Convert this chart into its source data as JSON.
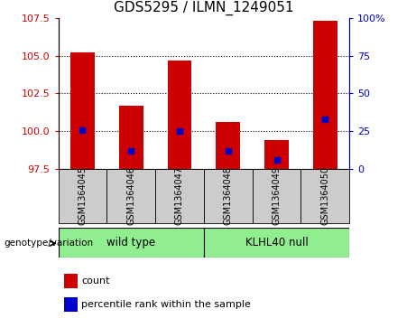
{
  "title": "GDS5295 / ILMN_1249051",
  "samples": [
    "GSM1364045",
    "GSM1364046",
    "GSM1364047",
    "GSM1364048",
    "GSM1364049",
    "GSM1364050"
  ],
  "counts": [
    105.2,
    101.7,
    104.7,
    100.6,
    99.4,
    107.3
  ],
  "percentiles": [
    26,
    12,
    25,
    12,
    6,
    33
  ],
  "ylim_left": [
    97.5,
    107.5
  ],
  "ylim_right": [
    0,
    100
  ],
  "yticks_left": [
    97.5,
    100.0,
    102.5,
    105.0,
    107.5
  ],
  "yticks_right": [
    0,
    25,
    50,
    75,
    100
  ],
  "bar_color": "#cc0000",
  "percentile_color": "#0000cc",
  "bar_bottom": 97.5,
  "title_fontsize": 11,
  "tick_fontsize": 8,
  "bar_width": 0.5,
  "left_tick_color": "#cc0000",
  "right_tick_color": "#0000cc",
  "sample_box_color": "#cccccc",
  "group_wt_color": "#90ee90",
  "group_kl_color": "#90ee90",
  "wt_label": "wild type",
  "kl_label": "KLHL40 null",
  "genotype_label": "genotype/variation"
}
